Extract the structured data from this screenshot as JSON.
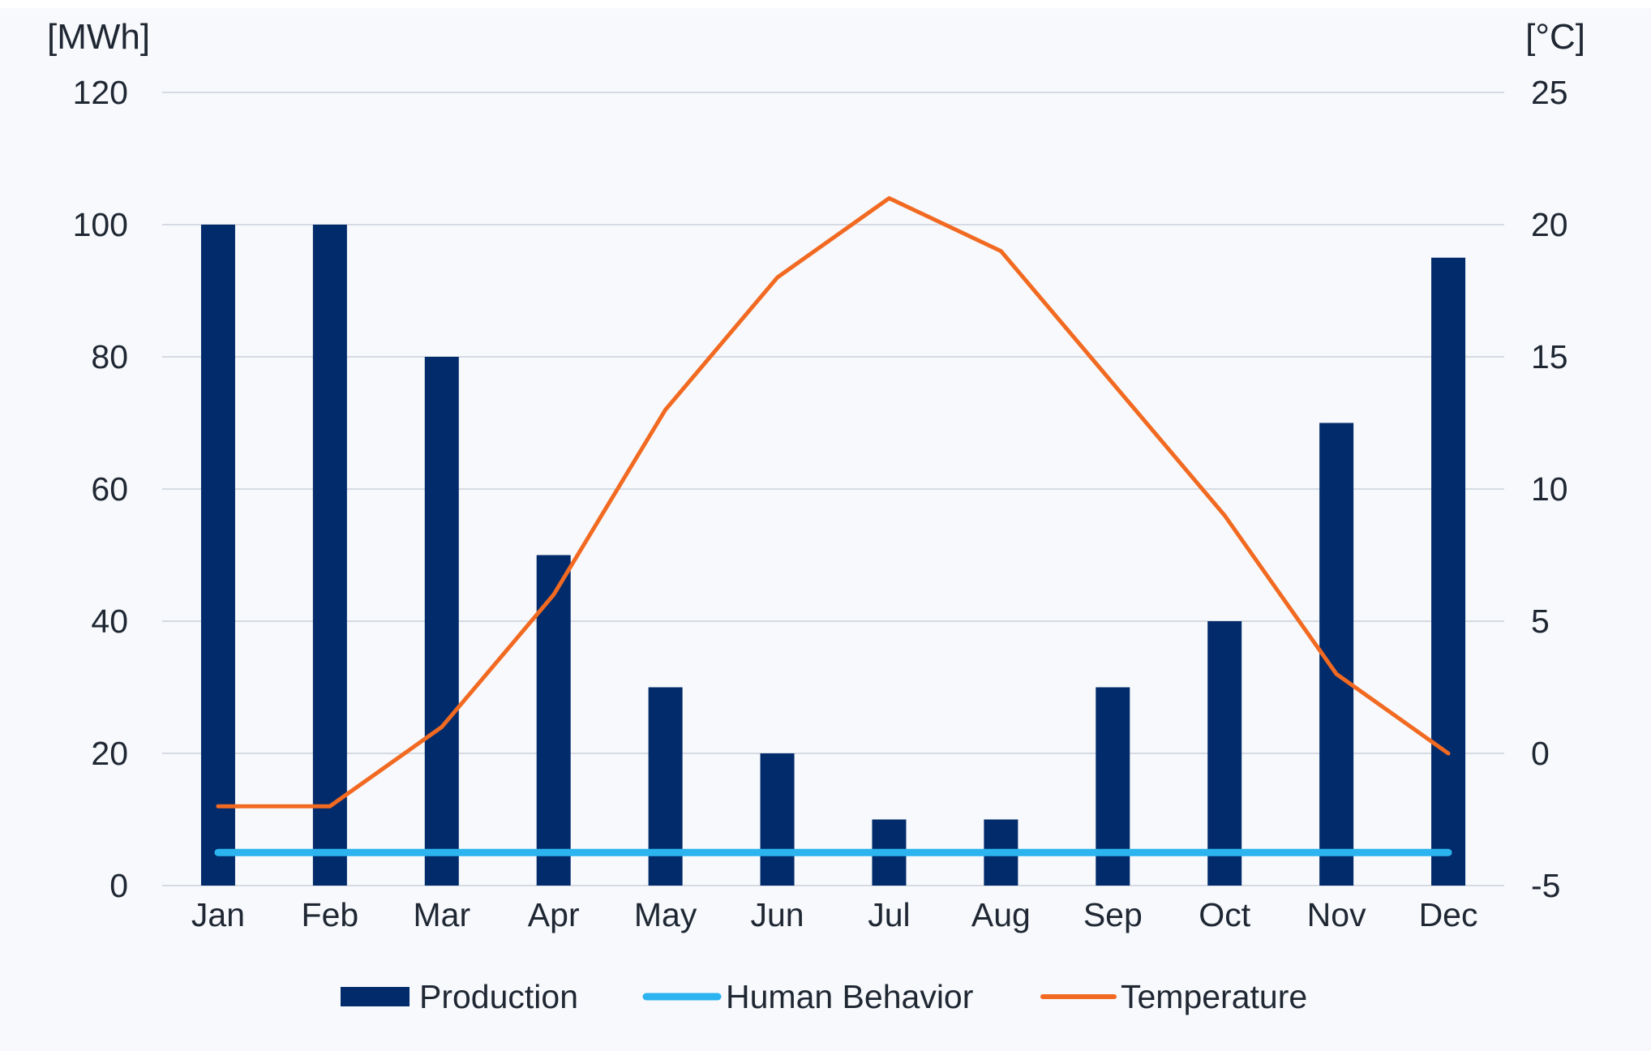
{
  "chart_data": {
    "type": "bar",
    "categories": [
      "Jan",
      "Feb",
      "Mar",
      "Apr",
      "May",
      "Jun",
      "Jul",
      "Aug",
      "Sep",
      "Oct",
      "Nov",
      "Dec"
    ],
    "series": [
      {
        "name": "Production",
        "type": "bar",
        "axis": "left",
        "color": "#022b6b",
        "values": [
          100,
          100,
          80,
          50,
          30,
          20,
          10,
          10,
          30,
          40,
          70,
          95
        ]
      },
      {
        "name": "Human Behavior",
        "type": "line",
        "axis": "left",
        "color": "#2bb4ef",
        "values": [
          5,
          5,
          5,
          5,
          5,
          5,
          5,
          5,
          5,
          5,
          5,
          5
        ]
      },
      {
        "name": "Temperature",
        "type": "line",
        "axis": "right",
        "color": "#f26a21",
        "values": [
          -2,
          -2,
          1,
          6,
          13,
          18,
          21,
          19,
          14,
          9,
          3,
          0
        ]
      }
    ],
    "y_left": {
      "label": "[MWh]",
      "ylim": [
        0,
        120
      ],
      "ticks": [
        0,
        20,
        40,
        60,
        80,
        100,
        120
      ]
    },
    "y_right": {
      "label": "[°C]",
      "ylim": [
        -5,
        25
      ],
      "ticks": [
        -5,
        0,
        5,
        10,
        15,
        20,
        25
      ]
    },
    "grid": true,
    "legend_position": "bottom"
  }
}
